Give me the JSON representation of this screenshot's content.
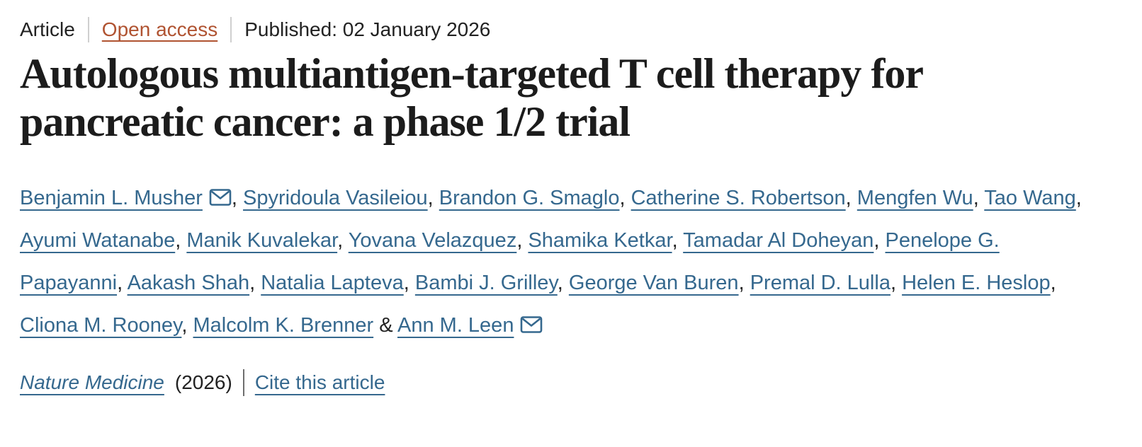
{
  "meta": {
    "type_label": "Article",
    "access_label": "Open access",
    "published_label": "Published: 02 January 2026"
  },
  "title": "Autologous multiantigen-targeted T cell therapy for pancreatic cancer: a phase 1/2 trial",
  "authors": [
    {
      "name": "Benjamin L. Musher",
      "corresponding": true
    },
    {
      "name": "Spyridoula Vasileiou",
      "corresponding": false
    },
    {
      "name": "Brandon G. Smaglo",
      "corresponding": false
    },
    {
      "name": "Catherine S. Robertson",
      "corresponding": false
    },
    {
      "name": "Mengfen Wu",
      "corresponding": false
    },
    {
      "name": "Tao Wang",
      "corresponding": false
    },
    {
      "name": "Ayumi Watanabe",
      "corresponding": false
    },
    {
      "name": "Manik Kuvalekar",
      "corresponding": false
    },
    {
      "name": "Yovana Velazquez",
      "corresponding": false
    },
    {
      "name": "Shamika Ketkar",
      "corresponding": false
    },
    {
      "name": "Tamadar Al Doheyan",
      "corresponding": false
    },
    {
      "name": "Penelope G. Papayanni",
      "corresponding": false
    },
    {
      "name": "Aakash Shah",
      "corresponding": false
    },
    {
      "name": "Natalia Lapteva",
      "corresponding": false
    },
    {
      "name": "Bambi J. Grilley",
      "corresponding": false
    },
    {
      "name": "George Van Buren",
      "corresponding": false
    },
    {
      "name": "Premal D. Lulla",
      "corresponding": false
    },
    {
      "name": "Helen E. Heslop",
      "corresponding": false
    },
    {
      "name": "Cliona M. Rooney",
      "corresponding": false
    },
    {
      "name": "Malcolm K. Brenner",
      "corresponding": false
    },
    {
      "name": "Ann M. Leen",
      "corresponding": true
    }
  ],
  "author_separator": ", ",
  "author_final_separator": " & ",
  "journal": {
    "name": "Nature Medicine",
    "year": "(2026)",
    "cite_label": "Cite this article"
  },
  "icons": {
    "corresponding_author": "email-icon"
  },
  "colors": {
    "link_blue": "#35688e",
    "open_access": "#b05331",
    "title_text": "#1c1c1c",
    "body_text": "#222222",
    "divider_light": "#cfcfcf",
    "divider_dark": "#6f6f6f"
  }
}
